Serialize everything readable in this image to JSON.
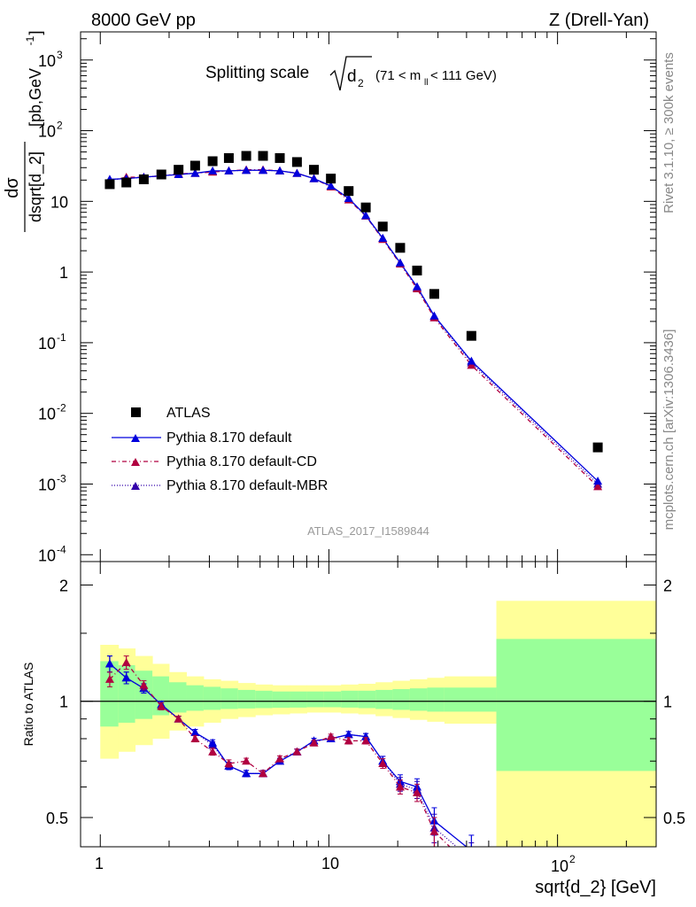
{
  "header": {
    "left": "8000 GeV pp",
    "right": "Z (Drell-Yan)"
  },
  "side_labels": {
    "rivet": "Rivet 3.1.10, ≥ 300k events",
    "mcplots": "mcplots.cern.ch [arXiv:1306.3436]"
  },
  "watermark": "ATLAS_2017_I1589844",
  "title": {
    "main": "Splitting scale",
    "var": "d",
    "var_sub": "2",
    "cut_open": "(71 < m",
    "cut_sub": "ll",
    "cut_close": " < 111 GeV)"
  },
  "axes": {
    "ylabel_top_num": "dσ",
    "ylabel_top_den": "dsqrt[d_2]",
    "ylabel_top_units": "[pb,GeV",
    "ylabel_top_units_sup": "-1",
    "ylabel_top_units_close": "]",
    "ylabel_bottom": "Ratio to ATLAS",
    "xlabel": "sqrt{d_2} [GeV]",
    "x_ticks": [
      "1",
      "10",
      "10"
    ],
    "x_tick_sup": "2",
    "y_top_ticks": [
      {
        "base": "10",
        "exp": "3"
      },
      {
        "base": "10",
        "exp": "2"
      },
      {
        "base": "10",
        "exp": ""
      },
      {
        "base": "1",
        "exp": ""
      },
      {
        "base": "10",
        "exp": "-1"
      },
      {
        "base": "10",
        "exp": "-2"
      },
      {
        "base": "10",
        "exp": "-3"
      },
      {
        "base": "10",
        "exp": "-4"
      }
    ],
    "y_ratio_ticks": [
      "2",
      "1",
      "0.5"
    ]
  },
  "legend": [
    {
      "label": "ATLAS",
      "color": "#000000"
    },
    {
      "label": "Pythia 8.170 default",
      "color": "#0000dd"
    },
    {
      "label": "Pythia 8.170 default-CD",
      "color": "#b00040"
    },
    {
      "label": "Pythia 8.170 default-MBR",
      "color": "#3300aa"
    }
  ],
  "chart_data": {
    "type": "scatter",
    "x_scale": "log",
    "x_range": [
      0.82,
      270
    ],
    "top": {
      "y_scale": "log",
      "y_range": [
        8e-05,
        2500
      ],
      "x": [
        1.1,
        1.3,
        1.55,
        1.85,
        2.2,
        2.6,
        3.1,
        3.65,
        4.35,
        5.15,
        6.1,
        7.25,
        8.6,
        10.2,
        12.2,
        14.5,
        17.2,
        20.5,
        24.3,
        28.9,
        42.0,
        150.0
      ],
      "series": [
        {
          "name": "ATLAS",
          "values": [
            17.5,
            18.5,
            20.5,
            24,
            28,
            32,
            37,
            41,
            44,
            44,
            41,
            36,
            28,
            21,
            14,
            8.2,
            4.4,
            2.2,
            1.05,
            0.49,
            0.125,
            0.0033
          ]
        },
        {
          "name": "Pythia 8.170 default",
          "values": [
            20.5,
            21,
            22,
            23,
            24,
            25,
            27,
            27,
            27.5,
            27.5,
            27,
            25,
            21,
            16.5,
            11,
            6.3,
            3.0,
            1.35,
            0.62,
            0.24,
            0.055,
            0.0011
          ]
        },
        {
          "name": "Pythia 8.170 default-CD",
          "values": [
            19.5,
            22,
            22,
            23,
            24.5,
            25,
            26,
            27,
            28,
            28,
            27,
            25,
            21,
            16,
            10.5,
            6.2,
            2.9,
            1.3,
            0.58,
            0.225,
            0.048,
            0.00092
          ]
        },
        {
          "name": "Pythia 8.170 default-MBR",
          "values": [
            20.5,
            21,
            22,
            23,
            24,
            25,
            26.5,
            27,
            27.5,
            27.5,
            27,
            25,
            21,
            16.5,
            11,
            6.3,
            3.0,
            1.35,
            0.6,
            0.235,
            0.052,
            0.001
          ]
        }
      ]
    },
    "ratio": {
      "y_scale": "log",
      "y_range": [
        0.42,
        2.3
      ],
      "reference": 1,
      "band_edges": [
        1.0,
        1.2,
        1.42,
        1.69,
        2.0,
        2.38,
        2.83,
        3.36,
        4.0,
        4.76,
        5.66,
        6.73,
        8.0,
        9.5,
        11.3,
        13.45,
        16.0,
        19.0,
        22.6,
        26.9,
        32.0,
        54.0,
        270
      ],
      "stat_band_lo": [
        0.86,
        0.88,
        0.9,
        0.92,
        0.935,
        0.945,
        0.95,
        0.955,
        0.958,
        0.96,
        0.962,
        0.963,
        0.965,
        0.965,
        0.963,
        0.96,
        0.955,
        0.95,
        0.945,
        0.94,
        0.94,
        0.66
      ],
      "stat_band_hi": [
        1.27,
        1.24,
        1.2,
        1.16,
        1.12,
        1.1,
        1.09,
        1.08,
        1.07,
        1.065,
        1.06,
        1.06,
        1.06,
        1.06,
        1.065,
        1.065,
        1.07,
        1.075,
        1.08,
        1.085,
        1.085,
        1.45
      ],
      "tot_band_lo": [
        0.71,
        0.74,
        0.77,
        0.8,
        0.84,
        0.86,
        0.88,
        0.9,
        0.91,
        0.92,
        0.925,
        0.93,
        0.935,
        0.935,
        0.93,
        0.925,
        0.915,
        0.905,
        0.895,
        0.885,
        0.875,
        0.42
      ],
      "tot_band_hi": [
        1.4,
        1.37,
        1.31,
        1.25,
        1.19,
        1.16,
        1.14,
        1.13,
        1.115,
        1.105,
        1.1,
        1.1,
        1.1,
        1.1,
        1.105,
        1.11,
        1.12,
        1.13,
        1.14,
        1.15,
        1.16,
        1.82
      ],
      "x": [
        1.1,
        1.3,
        1.55,
        1.85,
        2.2,
        2.6,
        3.1,
        3.65,
        4.35,
        5.15,
        6.1,
        7.25,
        8.6,
        10.2,
        12.2,
        14.5,
        17.2,
        20.5,
        24.3,
        28.9,
        42.0
      ],
      "series": [
        {
          "name": "Pythia 8.170 default",
          "values": [
            1.25,
            1.15,
            1.08,
            0.98,
            0.9,
            0.83,
            0.78,
            0.68,
            0.65,
            0.65,
            0.7,
            0.74,
            0.79,
            0.8,
            0.82,
            0.81,
            0.7,
            0.62,
            0.6,
            0.49,
            0.41
          ],
          "errors": [
            0.06,
            0.04,
            0.03,
            0.02,
            0.015,
            0.015,
            0.015,
            0.015,
            0.012,
            0.012,
            0.012,
            0.012,
            0.012,
            0.012,
            0.015,
            0.015,
            0.02,
            0.025,
            0.03,
            0.04,
            0.04
          ]
        },
        {
          "name": "Pythia 8.170 default-CD",
          "values": [
            1.14,
            1.26,
            1.1,
            0.97,
            0.9,
            0.8,
            0.74,
            0.69,
            0.7,
            0.65,
            0.71,
            0.74,
            0.78,
            0.81,
            0.79,
            0.79,
            0.69,
            0.6,
            0.58,
            0.46,
            0.37
          ],
          "errors": [
            0.05,
            0.05,
            0.03,
            0.02,
            0.015,
            0.015,
            0.015,
            0.015,
            0.012,
            0.012,
            0.012,
            0.012,
            0.012,
            0.012,
            0.015,
            0.015,
            0.02,
            0.025,
            0.03,
            0.04,
            0.04
          ]
        },
        {
          "name": "Pythia 8.170 default-MBR",
          "values": [
            1.25,
            1.15,
            1.08,
            0.98,
            0.9,
            0.83,
            0.77,
            0.68,
            0.65,
            0.65,
            0.7,
            0.74,
            0.79,
            0.8,
            0.82,
            0.81,
            0.7,
            0.61,
            0.59,
            0.47,
            0.39
          ],
          "errors": [
            0.06,
            0.04,
            0.03,
            0.02,
            0.015,
            0.015,
            0.015,
            0.015,
            0.012,
            0.012,
            0.012,
            0.012,
            0.012,
            0.012,
            0.015,
            0.015,
            0.02,
            0.025,
            0.03,
            0.04,
            0.04
          ]
        }
      ]
    },
    "band_colors": {
      "stat": "#99ff99",
      "total": "#ffff99"
    }
  }
}
